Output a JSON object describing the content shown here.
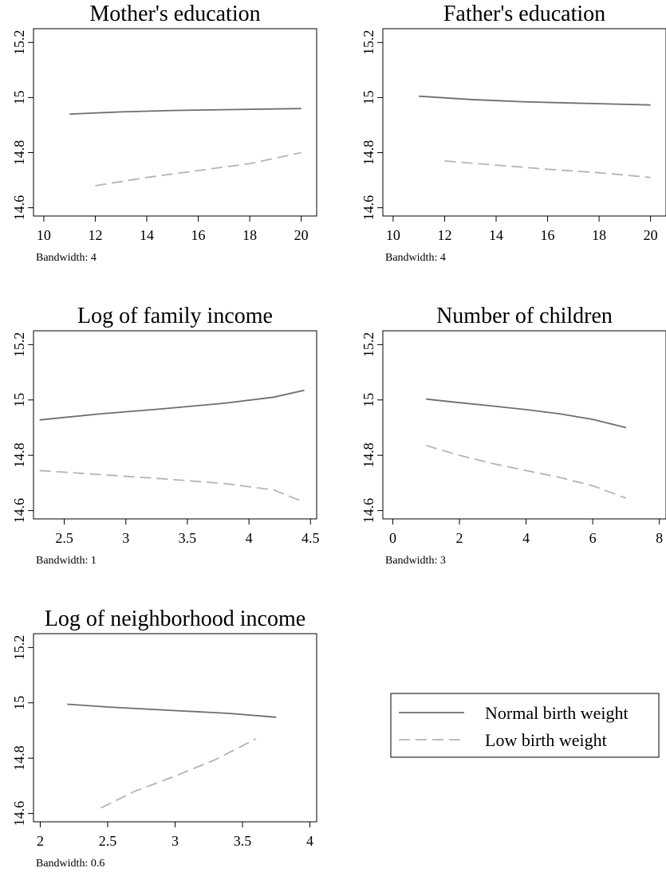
{
  "figure": {
    "legend": {
      "entries": [
        {
          "label": "Normal birth weight",
          "color": "#6e6e6e",
          "dash": "solid"
        },
        {
          "label": "Low birth weight",
          "color": "#b4b4b4",
          "dash": "dashed"
        }
      ]
    }
  },
  "chart_data": [
    {
      "type": "line",
      "title": "Mother's education",
      "note": "Bandwidth: 4",
      "xlim": [
        9.6,
        20.6
      ],
      "ylim": [
        14.57,
        15.25
      ],
      "xticks": [
        10,
        12,
        14,
        16,
        18,
        20
      ],
      "yticks": [
        14.6,
        14.8,
        15,
        15.2
      ],
      "ytick_labels": [
        "14.6",
        "14.8",
        "15",
        "15.2"
      ],
      "series": [
        {
          "name": "Normal birth weight",
          "x": [
            11,
            13,
            15,
            17,
            20
          ],
          "y": [
            14.94,
            14.948,
            14.953,
            14.956,
            14.96
          ]
        },
        {
          "name": "Low birth weight",
          "x": [
            12,
            14,
            16,
            18,
            20
          ],
          "y": [
            14.68,
            14.71,
            14.735,
            14.76,
            14.8
          ]
        }
      ]
    },
    {
      "type": "line",
      "title": "Father's education",
      "note": "Bandwidth: 4",
      "xlim": [
        9.6,
        20.6
      ],
      "ylim": [
        14.57,
        15.25
      ],
      "xticks": [
        10,
        12,
        14,
        16,
        18,
        20
      ],
      "yticks": [
        14.6,
        14.8,
        15,
        15.2
      ],
      "ytick_labels": [
        "14.6",
        "14.8",
        "15",
        "15.2"
      ],
      "series": [
        {
          "name": "Normal birth weight",
          "x": [
            11,
            13,
            15,
            17,
            20
          ],
          "y": [
            15.005,
            14.993,
            14.985,
            14.98,
            14.973
          ]
        },
        {
          "name": "Low birth weight",
          "x": [
            12,
            14,
            16,
            18,
            20
          ],
          "y": [
            14.77,
            14.755,
            14.74,
            14.727,
            14.71
          ]
        }
      ]
    },
    {
      "type": "line",
      "title": "Log of family income",
      "note": "Bandwidth: 1",
      "xlim": [
        2.25,
        4.55
      ],
      "ylim": [
        14.57,
        15.25
      ],
      "xticks": [
        2.5,
        3,
        3.5,
        4,
        4.5
      ],
      "yticks": [
        14.6,
        14.8,
        15,
        15.2
      ],
      "ytick_labels": [
        "14.6",
        "14.8",
        "15",
        "15.2"
      ],
      "series": [
        {
          "name": "Normal birth weight",
          "x": [
            2.3,
            2.8,
            3.3,
            3.8,
            4.2,
            4.45
          ],
          "y": [
            14.928,
            14.95,
            14.968,
            14.988,
            15.01,
            15.035
          ]
        },
        {
          "name": "Low birth weight",
          "x": [
            2.3,
            2.8,
            3.3,
            3.8,
            4.2,
            4.45
          ],
          "y": [
            14.745,
            14.73,
            14.715,
            14.698,
            14.675,
            14.63
          ]
        }
      ]
    },
    {
      "type": "line",
      "title": "Number of children",
      "note": "Bandwidth: 3",
      "xlim": [
        -0.3,
        8.2
      ],
      "ylim": [
        14.57,
        15.25
      ],
      "xticks": [
        0,
        2,
        4,
        6,
        8
      ],
      "yticks": [
        14.6,
        14.8,
        15,
        15.2
      ],
      "ytick_labels": [
        "14.6",
        "14.8",
        "15",
        "15.2"
      ],
      "series": [
        {
          "name": "Normal birth weight",
          "x": [
            1,
            2,
            3,
            4,
            5,
            6,
            7
          ],
          "y": [
            15.003,
            14.99,
            14.978,
            14.965,
            14.95,
            14.93,
            14.9
          ]
        },
        {
          "name": "Low birth weight",
          "x": [
            1,
            2,
            3,
            4,
            5,
            6,
            7
          ],
          "y": [
            14.835,
            14.8,
            14.77,
            14.745,
            14.72,
            14.69,
            14.645
          ]
        }
      ]
    },
    {
      "type": "line",
      "title": "Log of neighborhood income",
      "note": "Bandwidth: 0.6",
      "xlim": [
        1.95,
        4.05
      ],
      "ylim": [
        14.57,
        15.25
      ],
      "xticks": [
        2,
        2.5,
        3,
        3.5,
        4
      ],
      "yticks": [
        14.6,
        14.8,
        15,
        15.2
      ],
      "ytick_labels": [
        "14.6",
        "14.8",
        "15",
        "15.2"
      ],
      "series": [
        {
          "name": "Normal birth weight",
          "x": [
            2.2,
            2.5,
            3.0,
            3.4,
            3.75
          ],
          "y": [
            14.995,
            14.985,
            14.972,
            14.962,
            14.948
          ]
        },
        {
          "name": "Low birth weight",
          "x": [
            2.45,
            2.7,
            3.0,
            3.3,
            3.6
          ],
          "y": [
            14.62,
            14.68,
            14.735,
            14.795,
            14.87
          ]
        }
      ]
    }
  ]
}
